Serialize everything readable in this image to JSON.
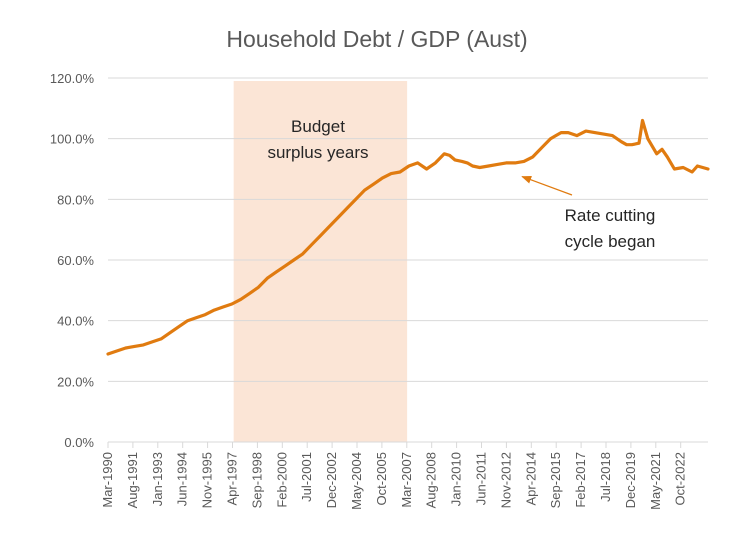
{
  "chart_data": {
    "type": "line",
    "title": "Household Debt / GDP (Aust)",
    "xlabel": "",
    "ylabel": "",
    "ylim": [
      0,
      120
    ],
    "y_ticks": [
      "0.0%",
      "20.0%",
      "40.0%",
      "60.0%",
      "80.0%",
      "100.0%",
      "120.0%"
    ],
    "y_tick_values": [
      0,
      20,
      40,
      60,
      80,
      100,
      120
    ],
    "x_ticks": [
      "Mar-1990",
      "Aug-1991",
      "Jan-1993",
      "Jun-1994",
      "Nov-1995",
      "Apr-1997",
      "Sep-1998",
      "Feb-2000",
      "Jul-2001",
      "Dec-2002",
      "May-2004",
      "Oct-2005",
      "Mar-2007",
      "Aug-2008",
      "Jan-2010",
      "Jun-2011",
      "Nov-2012",
      "Apr-2014",
      "Sep-2015",
      "Feb-2017",
      "Jul-2018",
      "Dec-2019",
      "May-2021",
      "Oct-2022"
    ],
    "x_range": [
      1990.0,
      2023.9
    ],
    "series": [
      {
        "name": "Household Debt / GDP",
        "color": "#E07B10",
        "x": [
          1990.0,
          1990.5,
          1991.0,
          1991.5,
          1992.0,
          1992.5,
          1993.0,
          1993.5,
          1994.0,
          1994.5,
          1995.0,
          1995.5,
          1996.0,
          1996.5,
          1997.0,
          1997.5,
          1998.0,
          1998.5,
          1999.0,
          1999.5,
          2000.0,
          2000.5,
          2001.0,
          2001.5,
          2002.0,
          2002.5,
          2003.0,
          2003.5,
          2004.0,
          2004.5,
          2005.0,
          2005.5,
          2006.0,
          2006.5,
          2007.0,
          2007.5,
          2008.0,
          2008.5,
          2009.0,
          2009.3,
          2009.6,
          2010.0,
          2010.3,
          2010.6,
          2011.0,
          2011.5,
          2012.0,
          2012.5,
          2013.0,
          2013.5,
          2014.0,
          2014.5,
          2015.0,
          2015.3,
          2015.6,
          2016.0,
          2016.5,
          2017.0,
          2017.5,
          2018.0,
          2018.5,
          2019.0,
          2019.3,
          2019.6,
          2020.0,
          2020.2,
          2020.5,
          2021.0,
          2021.3,
          2021.6,
          2022.0,
          2022.5,
          2023.0,
          2023.3,
          2023.6,
          2023.9
        ],
        "values": [
          29,
          30,
          31,
          31.5,
          32,
          33,
          34,
          36,
          38,
          40,
          41,
          42,
          43.5,
          44.5,
          45.5,
          47,
          49,
          51,
          54,
          56,
          58,
          60,
          62,
          65,
          68,
          71,
          74,
          77,
          80,
          83,
          85,
          87,
          88.5,
          89,
          91,
          92,
          90,
          92,
          95,
          94.5,
          93,
          92.5,
          92,
          91,
          90.5,
          91,
          91.5,
          92,
          92,
          92.5,
          94,
          97,
          100,
          101,
          102,
          102,
          101,
          102.5,
          102,
          101.5,
          101,
          99,
          98,
          98,
          98.5,
          106,
          100,
          95,
          96.5,
          94,
          90,
          90.5,
          89,
          91,
          90.5,
          90
        ]
      }
    ],
    "shaded_region": {
      "label_line1": "Budget",
      "label_line2": "surplus years",
      "x_start": 1997.1,
      "x_end": 2006.9,
      "color": "#FBE5D6"
    },
    "annotation": {
      "line1": "Rate cutting",
      "line2": "cycle began",
      "arrow_target_x": 2013.4,
      "arrow_target_y": 87.5
    }
  }
}
